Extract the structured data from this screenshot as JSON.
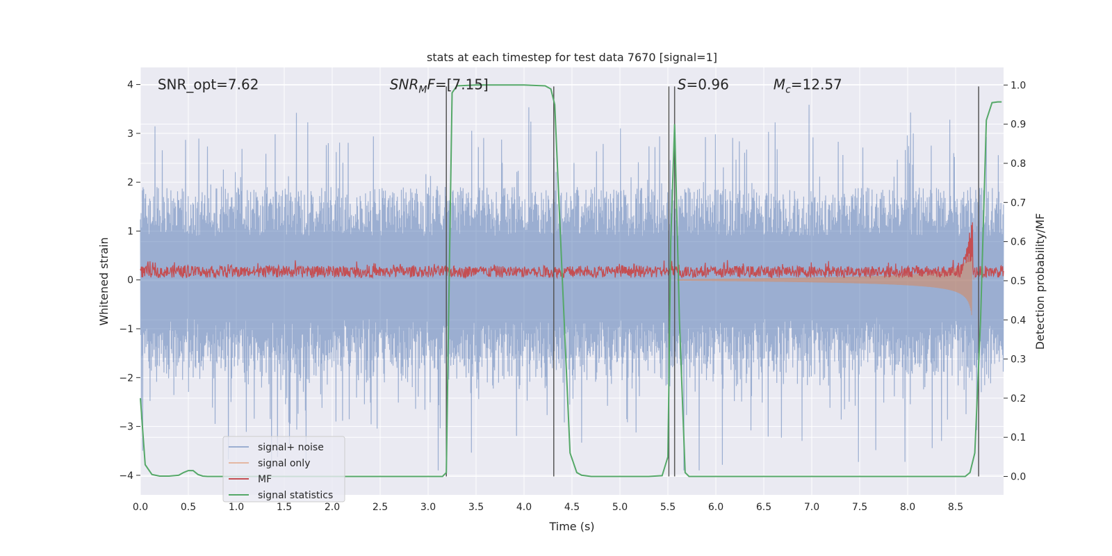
{
  "chart_data": {
    "type": "line",
    "title": "stats at each timestep for test data 7670 [signal=1]",
    "xlabel": "Time (s)",
    "ylabel_left": "Whitened strain",
    "ylabel_right": "Detection probability/MF",
    "xlim": [
      0.0,
      9.0
    ],
    "ylim_left": [
      -4.4,
      4.35
    ],
    "ylim_right": [
      -0.047,
      1.045
    ],
    "x_ticks": [
      0.0,
      0.5,
      1.0,
      1.5,
      2.0,
      2.5,
      3.0,
      3.5,
      4.0,
      4.5,
      5.0,
      5.5,
      6.0,
      6.5,
      7.0,
      7.5,
      8.0,
      8.5
    ],
    "x_tick_labels": [
      "0.0",
      "0.5",
      "1.0",
      "1.5",
      "2.0",
      "2.5",
      "3.0",
      "3.5",
      "4.0",
      "4.5",
      "5.0",
      "5.5",
      "6.0",
      "6.5",
      "7.0",
      "7.5",
      "8.0",
      "8.5"
    ],
    "y_left_ticks": [
      -4,
      -3,
      -2,
      -1,
      0,
      1,
      2,
      3,
      4
    ],
    "y_left_tick_labels": [
      "−4",
      "−3",
      "−2",
      "−1",
      "0",
      "1",
      "2",
      "3",
      "4"
    ],
    "y_right_ticks": [
      0.0,
      0.1,
      0.2,
      0.3,
      0.4,
      0.5,
      0.6,
      0.7,
      0.8,
      0.9,
      1.0
    ],
    "y_right_tick_labels": [
      "0.0",
      "0.1",
      "0.2",
      "0.3",
      "0.4",
      "0.5",
      "0.6",
      "0.7",
      "0.8",
      "0.9",
      "1.0"
    ],
    "grid": true,
    "legend_position": "lower-left",
    "annotations": [
      {
        "name": "snr-opt-annotation",
        "text": "SNR_opt=7.62",
        "x": 0.18,
        "y": 4.0
      },
      {
        "name": "snr-mf-annotation",
        "text": "SNR_MF=[7.15]",
        "x": 2.6,
        "y": 4.0
      },
      {
        "name": "s-annotation",
        "text": "S=0.96",
        "x": 5.6,
        "y": 4.0
      },
      {
        "name": "mc-annotation",
        "text": "M_c=12.57",
        "x": 6.6,
        "y": 4.0
      }
    ],
    "vertical_markers_x": [
      3.19,
      4.31,
      5.51,
      5.57,
      8.74
    ],
    "series": [
      {
        "name": "signal+ noise",
        "color": "#4c72b0",
        "alpha": 0.5,
        "axis": "left",
        "style": "dense noise, amplitude approx ±2 with spikes to ±3.9, t from 0 to 9 s"
      },
      {
        "name": "signal only",
        "color": "#dd8452",
        "alpha": 0.5,
        "axis": "left",
        "style": "chirp growing from ~0.05 near t=5.6 s to peak ~1.3 at t≈8.65 s, then ending"
      },
      {
        "name": "MF",
        "color": "#c44e52",
        "axis": "right",
        "style": "noisy trace between ~0.5 and ~0.55, spike to ~0.63 at t≈8.67 s"
      },
      {
        "name": "signal statistics",
        "color": "#55a868",
        "axis": "right",
        "x": [
          0.0,
          0.05,
          0.12,
          0.2,
          0.3,
          0.4,
          0.45,
          0.5,
          0.55,
          0.6,
          0.65,
          0.7,
          1.0,
          2.0,
          3.0,
          3.15,
          3.19,
          3.21,
          3.25,
          3.3,
          3.5,
          4.0,
          4.22,
          4.28,
          4.32,
          4.4,
          4.48,
          4.55,
          4.6,
          4.7,
          5.0,
          5.3,
          5.44,
          5.5,
          5.53,
          5.57,
          5.62,
          5.68,
          5.72,
          5.8,
          6.0,
          7.0,
          8.0,
          8.6,
          8.65,
          8.7,
          8.76,
          8.82,
          8.88,
          8.94,
          8.98
        ],
        "values": [
          0.2,
          0.03,
          0.005,
          0.001,
          0.001,
          0.003,
          0.01,
          0.015,
          0.015,
          0.005,
          0.001,
          0.0,
          0.0,
          0.0,
          0.0,
          0.0,
          0.01,
          0.35,
          0.98,
          0.998,
          1.0,
          1.0,
          0.998,
          0.99,
          0.95,
          0.5,
          0.06,
          0.01,
          0.003,
          0.0,
          0.0,
          0.0,
          0.002,
          0.05,
          0.6,
          0.9,
          0.4,
          0.01,
          0.0,
          0.0,
          0.0,
          0.0,
          0.0,
          0.0,
          0.01,
          0.06,
          0.4,
          0.91,
          0.955,
          0.957,
          0.957
        ]
      }
    ]
  }
}
